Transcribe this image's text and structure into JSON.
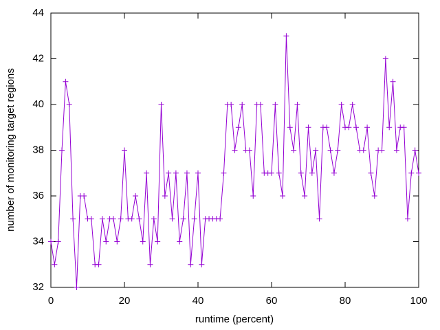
{
  "chart_data": {
    "type": "line",
    "x_label": "runtime (percent)",
    "y_label": "number of monitoring target regions",
    "x": [
      0,
      1,
      2,
      3,
      4,
      5,
      6,
      7,
      8,
      9,
      10,
      11,
      12,
      13,
      14,
      15,
      16,
      17,
      18,
      19,
      20,
      21,
      22,
      23,
      24,
      25,
      26,
      27,
      28,
      29,
      30,
      31,
      32,
      33,
      34,
      35,
      36,
      37,
      38,
      39,
      40,
      41,
      42,
      43,
      44,
      45,
      46,
      47,
      48,
      49,
      50,
      51,
      52,
      53,
      54,
      55,
      56,
      57,
      58,
      59,
      60,
      61,
      62,
      63,
      64,
      65,
      66,
      67,
      68,
      69,
      70,
      71,
      72,
      73,
      74,
      75,
      76,
      77,
      78,
      79,
      80,
      81,
      82,
      83,
      84,
      85,
      86,
      87,
      88,
      89,
      90,
      91,
      92,
      93,
      94,
      95,
      96,
      97,
      98,
      99,
      100
    ],
    "series": [
      {
        "color": "#9400d3",
        "marker": "+",
        "values": [
          34,
          33,
          34,
          38,
          41,
          40,
          35,
          32,
          36,
          36,
          35,
          35,
          33,
          33,
          35,
          34,
          35,
          35,
          34,
          35,
          38,
          35,
          35,
          36,
          35,
          34,
          37,
          33,
          35,
          34,
          40,
          36,
          37,
          35,
          37,
          34,
          35,
          37,
          33,
          35,
          37,
          33,
          35,
          35,
          35,
          35,
          35,
          37,
          40,
          40,
          38,
          39,
          40,
          38,
          38,
          36,
          40,
          40,
          37,
          37,
          37,
          40,
          37,
          36,
          43,
          39,
          38,
          40,
          37,
          36,
          39,
          37,
          38,
          35,
          39,
          39,
          38,
          37,
          38,
          40,
          39,
          39,
          40,
          39,
          38,
          38,
          39,
          37,
          36,
          38,
          38,
          42,
          39,
          41,
          38,
          39,
          39,
          35,
          37,
          38,
          37
        ]
      }
    ],
    "xlim": [
      0,
      100
    ],
    "xticks": [
      0,
      20,
      40,
      60,
      80,
      100
    ],
    "ylim": [
      32,
      44
    ],
    "yticks": [
      32,
      34,
      36,
      38,
      40,
      42,
      44
    ],
    "grid": false
  }
}
